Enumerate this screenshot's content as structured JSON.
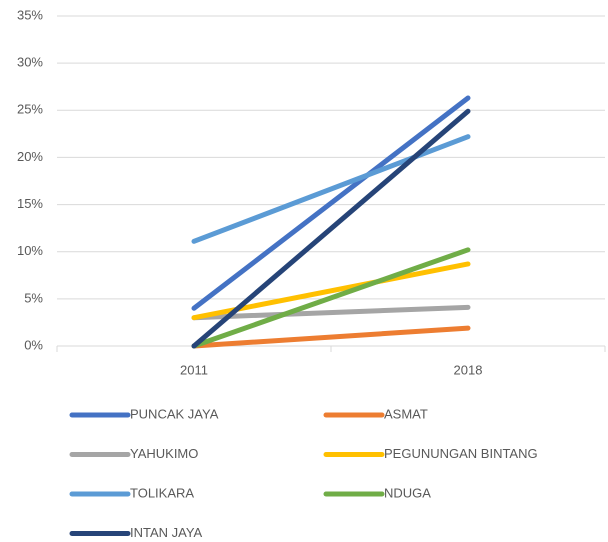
{
  "chart_data": {
    "type": "line",
    "categories": [
      "2011",
      "2018"
    ],
    "series": [
      {
        "name": "PUNCAK JAYA",
        "color": "#4472c4",
        "values": [
          4.0,
          26.3
        ]
      },
      {
        "name": "ASMAT",
        "color": "#ed7d31",
        "values": [
          0,
          1.9
        ]
      },
      {
        "name": "YAHUKIMO",
        "color": "#a5a5a5",
        "values": [
          3.0,
          4.1
        ]
      },
      {
        "name": "PEGUNUNGAN BINTANG",
        "color": "#ffc000",
        "values": [
          3.0,
          8.7
        ]
      },
      {
        "name": "TOLIKARA",
        "color": "#5b9bd5",
        "values": [
          11.1,
          22.2
        ]
      },
      {
        "name": "NDUGA",
        "color": "#70ad47",
        "values": [
          0,
          10.2
        ]
      },
      {
        "name": "INTAN JAYA",
        "color": "#264478",
        "values": [
          0,
          24.9
        ]
      }
    ],
    "ylim": [
      0,
      35
    ],
    "yticks": [
      {
        "value": 0,
        "label": "0%"
      },
      {
        "value": 5,
        "label": "5%"
      },
      {
        "value": 10,
        "label": "10%"
      },
      {
        "value": 15,
        "label": "15%"
      },
      {
        "value": 20,
        "label": "20%"
      },
      {
        "value": 25,
        "label": "25%"
      },
      {
        "value": 30,
        "label": "30%"
      },
      {
        "value": 35,
        "label": "35%"
      }
    ],
    "grid": true,
    "legend": "bottom"
  }
}
